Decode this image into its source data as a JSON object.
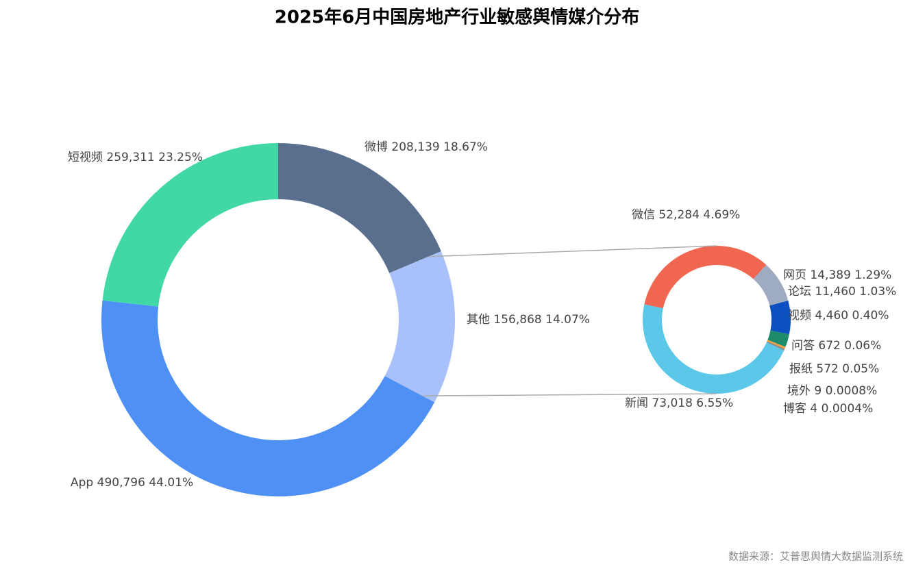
{
  "source": "数据来源：艾普思舆情大数据监测系统",
  "chart_data": [
    {
      "type": "donut",
      "title": "2025年6月中国房地产行业敏感舆情媒介分布",
      "categories": [
        "微博",
        "其他",
        "App",
        "短视频"
      ],
      "values": [
        208139,
        156868,
        490796,
        259311
      ],
      "value_labels": [
        "208,139",
        "156,868",
        "490,796",
        "259,311"
      ],
      "percents": [
        18.67,
        14.07,
        44.01,
        23.25
      ],
      "percent_labels": [
        "18.67%",
        "14.07%",
        "44.01%",
        "23.25%"
      ],
      "colors": [
        "#5a6e8e",
        "#a9c1fa",
        "#4f90f5",
        "#41d8a6"
      ]
    },
    {
      "type": "donut",
      "categories": [
        "微信",
        "网页",
        "论坛",
        "视频",
        "问答",
        "报纸",
        "境外",
        "博客",
        "新闻"
      ],
      "values": [
        52284,
        14389,
        11460,
        4460,
        672,
        572,
        9,
        4,
        73018
      ],
      "value_labels": [
        "52,284",
        "14,389",
        "11,460",
        "4,460",
        "672",
        "572",
        "9",
        "4",
        "73,018"
      ],
      "percents": [
        4.69,
        1.29,
        1.03,
        0.4,
        0.06,
        0.05,
        0.0008,
        0.0004,
        6.55
      ],
      "percent_labels": [
        "4.69%",
        "1.29%",
        "1.03%",
        "0.40%",
        "0.06%",
        "0.05%",
        "0.0008%",
        "0.0004%",
        "6.55%"
      ],
      "colors": [
        "#f06650",
        "#9eabc0",
        "#0c4fc0",
        "#1e8c6a",
        "#f0a040",
        "#8a8a8a",
        "#333333",
        "#b0b0b0",
        "#5bc8ea"
      ]
    }
  ]
}
